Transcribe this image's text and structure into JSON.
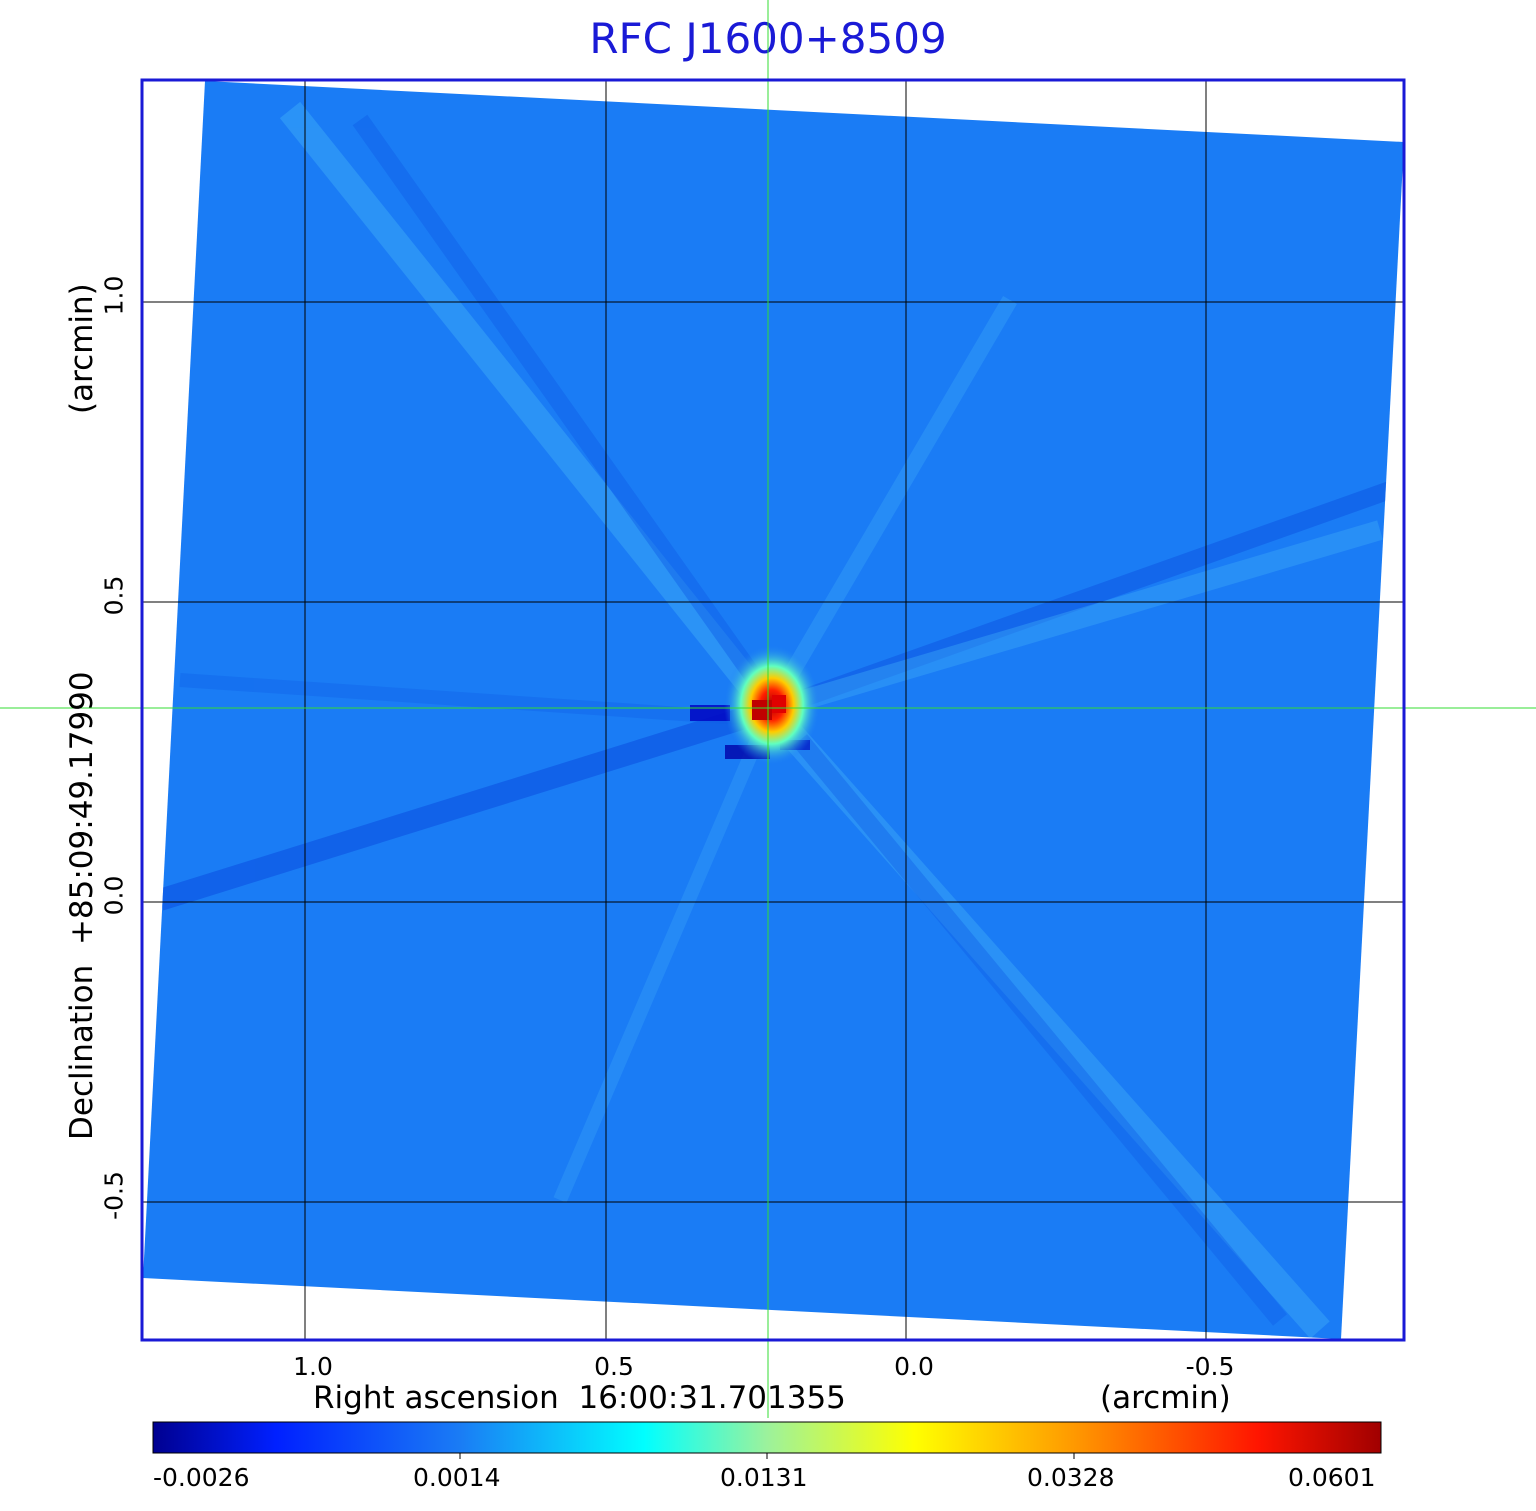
{
  "title": "RFC J1600+8509",
  "x_axis": {
    "label": "Right ascension  16:00:31.701355",
    "unit": "(arcmin)",
    "ticks": [
      "1.0",
      "0.5",
      "0.0",
      "-0.5"
    ]
  },
  "y_axis": {
    "label": "Declination  +85:09:49.17990",
    "unit": "(arcmin)",
    "ticks": [
      "1.0",
      "0.5",
      "0.0",
      "-0.5"
    ]
  },
  "colorbar": {
    "ticks": [
      "-0.0026",
      "0.0014",
      "0.0131",
      "0.0328",
      "0.0601"
    ]
  },
  "colors": {
    "title": "#1a1ad6",
    "frame": "#1a1ad6",
    "crosshair": "#33dd33",
    "background_field": "#1a7cf5"
  }
}
